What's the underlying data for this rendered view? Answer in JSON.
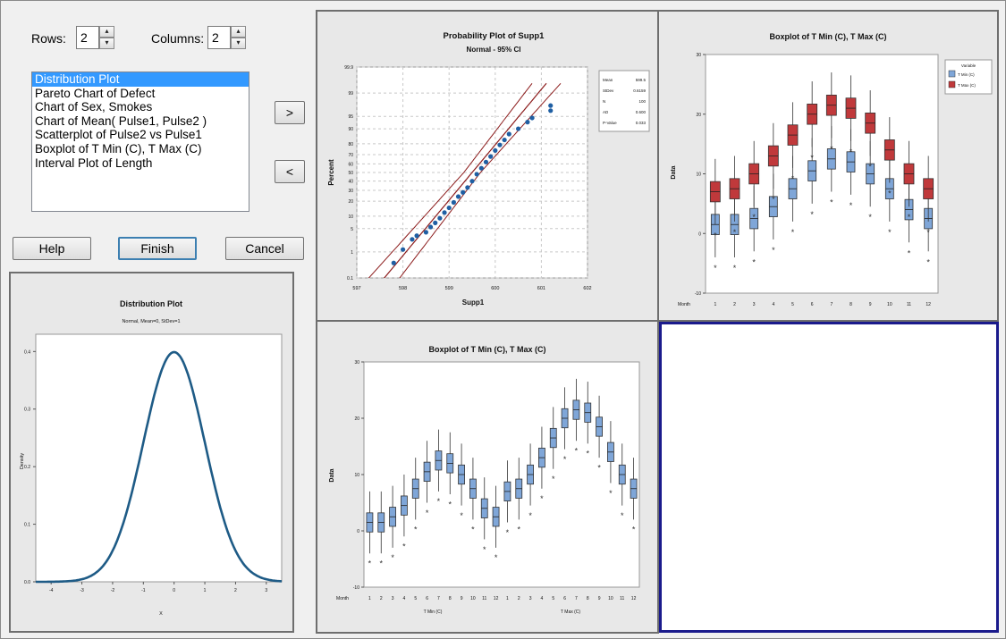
{
  "controls": {
    "rows_label": "Rows:",
    "rows_value": "2",
    "columns_label": "Columns:",
    "columns_value": "2",
    "add_label": ">",
    "remove_label": "<"
  },
  "graph_list": {
    "items": [
      "Distribution Plot",
      "Pareto Chart of Defect",
      "Chart of Sex, Smokes",
      "Chart of Mean( Pulse1, Pulse2 )",
      "Scatterplot of Pulse2 vs Pulse1",
      "Boxplot of T Min (C), T Max (C)",
      "Interval Plot of Length"
    ],
    "selected_index": 0
  },
  "buttons": {
    "help": "Help",
    "finish": "Finish",
    "cancel": "Cancel"
  },
  "colors": {
    "selection": "#3399ff",
    "tmin_box": "#7fa6d8",
    "tmax_box": "#c0393b",
    "prob_points": "#1f5fa3",
    "ci_lines": "#8b1a1a",
    "normal_curve": "#1e5b86",
    "active_panel_border": "#1a1a8c"
  },
  "chart_data": [
    {
      "id": "distribution",
      "type": "line",
      "title": "Distribution Plot",
      "subtitle": "Normal, Mean=0, StDev=1",
      "xlabel": "X",
      "ylabel": "Density",
      "xticks": [
        "-4",
        "-3",
        "-2",
        "-1",
        "0",
        "1",
        "2",
        "3"
      ],
      "yticks": [
        "0.0",
        "0.1",
        "0.2",
        "0.3",
        "0.4"
      ],
      "xlim": [
        -4.5,
        3.5
      ],
      "ylim": [
        0,
        0.43
      ],
      "mean": 0,
      "stdev": 1
    },
    {
      "id": "probability",
      "type": "scatter",
      "title": "Probability Plot of Supp1",
      "subtitle": "Normal - 95% CI",
      "xlabel": "Supp1",
      "ylabel": "Percent",
      "xticks": [
        "597",
        "598",
        "599",
        "600",
        "601",
        "602"
      ],
      "yticks": [
        "0.1",
        "1",
        "5",
        "10",
        "20",
        "30",
        "40",
        "50",
        "60",
        "70",
        "80",
        "90",
        "95",
        "99",
        "99.9"
      ],
      "xlim": [
        597,
        602
      ],
      "ylim": [
        0.1,
        99.9
      ],
      "stats": [
        {
          "label": "Mean",
          "value": "599.5"
        },
        {
          "label": "StDev",
          "value": "0.6159"
        },
        {
          "label": "N",
          "value": "100"
        },
        {
          "label": "AD",
          "value": "0.600"
        },
        {
          "label": "P-Value",
          "value": "0.033"
        }
      ],
      "points": [
        [
          597.8,
          0.4
        ],
        [
          598.0,
          1.2
        ],
        [
          598.2,
          2.5
        ],
        [
          598.3,
          3.2
        ],
        [
          598.5,
          4.0
        ],
        [
          598.6,
          5.5
        ],
        [
          598.7,
          7.0
        ],
        [
          598.8,
          9.0
        ],
        [
          598.9,
          12.0
        ],
        [
          599.0,
          15.0
        ],
        [
          599.1,
          19.0
        ],
        [
          599.2,
          24.0
        ],
        [
          599.3,
          28.0
        ],
        [
          599.4,
          33.0
        ],
        [
          599.5,
          40.0
        ],
        [
          599.6,
          48.0
        ],
        [
          599.7,
          55.0
        ],
        [
          599.8,
          62.0
        ],
        [
          599.9,
          68.0
        ],
        [
          600.0,
          74.0
        ],
        [
          600.1,
          79.0
        ],
        [
          600.2,
          83.0
        ],
        [
          600.3,
          87.0
        ],
        [
          600.5,
          90.0
        ],
        [
          600.7,
          93.0
        ],
        [
          600.8,
          94.5
        ],
        [
          601.2,
          97.5
        ],
        [
          601.2,
          96.5
        ]
      ],
      "fit": {
        "mean": 599.5,
        "sd": 0.6159
      }
    },
    {
      "id": "boxplot-tr",
      "type": "boxplot",
      "title": "Boxplot of T Min (C), T Max (C)",
      "xlabel": "Month",
      "ylabel": "Data",
      "categories": [
        "1",
        "2",
        "3",
        "4",
        "5",
        "6",
        "7",
        "8",
        "9",
        "10",
        "11",
        "12"
      ],
      "yticks": [
        "-10",
        "0",
        "10",
        "20",
        "30"
      ],
      "ylim": [
        -10,
        30
      ],
      "legend_title": "Variable",
      "series": [
        {
          "name": "T Min (C)",
          "medians": [
            1.5,
            1.5,
            2.5,
            4.5,
            7.5,
            10.5,
            12.5,
            12.0,
            10.0,
            7.5,
            4.0,
            2.5
          ]
        },
        {
          "name": "T Max (C)",
          "medians": [
            7.0,
            7.5,
            10.0,
            13.0,
            16.5,
            20.0,
            21.5,
            21.0,
            18.5,
            14.0,
            10.0,
            7.5
          ]
        }
      ]
    },
    {
      "id": "boxplot-bl",
      "type": "boxplot",
      "title": "Boxplot of T Min (C), T Max (C)",
      "xlabel": "Month",
      "ylabel": "Data",
      "categories": [
        "1",
        "2",
        "3",
        "4",
        "5",
        "6",
        "7",
        "8",
        "9",
        "10",
        "11",
        "12",
        "1",
        "2",
        "3",
        "4",
        "5",
        "6",
        "7",
        "8",
        "9",
        "10",
        "11",
        "12"
      ],
      "group_labels": [
        "T Min (C)",
        "T Max (C)"
      ],
      "yticks": [
        "-10",
        "0",
        "10",
        "20",
        "30"
      ],
      "ylim": [
        -10,
        30
      ],
      "medians": [
        1.5,
        1.5,
        2.5,
        4.5,
        7.5,
        10.5,
        12.5,
        12.0,
        10.0,
        7.5,
        4.0,
        2.5,
        7.0,
        7.5,
        10.0,
        13.0,
        16.5,
        20.0,
        21.5,
        21.0,
        18.5,
        14.0,
        10.0,
        7.5
      ]
    }
  ]
}
